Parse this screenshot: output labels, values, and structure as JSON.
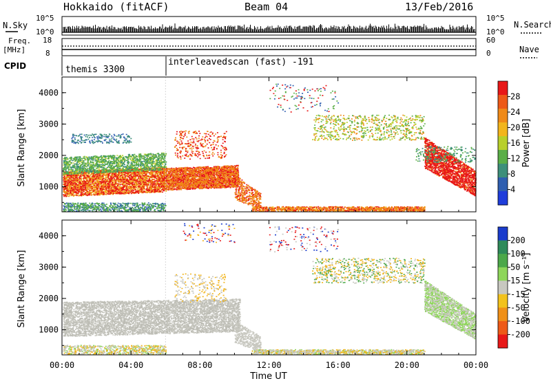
{
  "header": {
    "station": "Hokkaido (fitACF)",
    "beam": "Beam 04",
    "date": "13/Feb/2016"
  },
  "top_panels": {
    "nsky_label": "N.Sky",
    "nsky_ticks": [
      "10^5",
      "10^0"
    ],
    "nsearch_label": "N.Search",
    "freq_label_1": "Freq.",
    "freq_label_2": "[MHz]",
    "freq_ticks": [
      "18",
      "8"
    ],
    "nave_label": "Nave",
    "nave_ticks": [
      "60",
      "0"
    ],
    "cpid_label": "CPID",
    "cpid_segments": [
      {
        "name": "themis 3300",
        "start_hour": 0
      },
      {
        "name": "interleavedscan (fast) -191",
        "start_hour": 6
      }
    ]
  },
  "chart_data": [
    {
      "type": "heatmap",
      "name": "power",
      "ylabel": "Slant Range [km]",
      "ylim": [
        200,
        4500
      ],
      "yticks": [
        "1000",
        "2000",
        "3000",
        "4000"
      ],
      "xlim_hours": [
        0,
        24
      ],
      "colorbar_label": "Power [dB]",
      "colorbar_ticks": [
        "4",
        "8",
        "12",
        "16",
        "20",
        "24",
        "28"
      ],
      "colorbar_colors": [
        "#1f3ddb",
        "#2f5fb0",
        "#3d8f7a",
        "#5aae47",
        "#b8cf2a",
        "#f2b51c",
        "#f08a18",
        "#ee5a18",
        "#e81818"
      ]
    },
    {
      "type": "heatmap",
      "name": "velocity",
      "ylabel": "Slant Range [km]",
      "ylim": [
        200,
        4500
      ],
      "yticks": [
        "1000",
        "2000",
        "3000",
        "4000"
      ],
      "xlim_hours": [
        0,
        24
      ],
      "colorbar_label": "Velocity [m s⁻¹]",
      "colorbar_ticks": [
        "200",
        "100",
        "50",
        "15",
        "-15",
        "-50",
        "-100",
        "-200"
      ],
      "colorbar_colors": [
        "#1a3ccc",
        "#2f8a5a",
        "#4ca84a",
        "#8ed65a",
        "#c8c8c0",
        "#f2c21c",
        "#f09018",
        "#ee5a18",
        "#e81818"
      ]
    }
  ],
  "xaxis": {
    "ticks": [
      "00:00",
      "04:00",
      "08:00",
      "12:00",
      "16:00",
      "20:00",
      "00:00"
    ],
    "label": "Time UT"
  },
  "colors": {
    "power_red": "#e81818",
    "power_orange": "#f08a18",
    "power_green": "#5aae47",
    "power_teal": "#3d8f7a",
    "power_blue": "#2f5fb0",
    "vel_grey": "#c8c8c0",
    "vel_green": "#8ed65a",
    "vel_orange": "#f2b51c"
  }
}
